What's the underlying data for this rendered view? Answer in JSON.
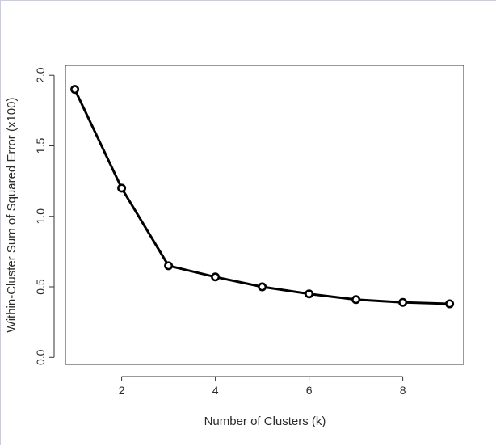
{
  "chart_data": {
    "type": "line",
    "title": "",
    "xlabel": "Number of Clusters (k)",
    "ylabel": "Within-Cluster Sum of Squared Error (x100)",
    "x": [
      1,
      2,
      3,
      4,
      5,
      6,
      7,
      8,
      9
    ],
    "series": [
      {
        "values": [
          1.9,
          1.2,
          0.65,
          0.57,
          0.5,
          0.45,
          0.41,
          0.39,
          0.38
        ],
        "color": "#000000",
        "marker": "open-circle"
      }
    ],
    "xlim": [
      0.8,
      9.3
    ],
    "ylim": [
      -0.05,
      2.07
    ],
    "xticks": [
      2,
      4,
      6,
      8
    ],
    "xtick_labels": [
      "2",
      "4",
      "6",
      "8"
    ],
    "yticks": [
      0.0,
      0.5,
      1.0,
      1.5,
      2.0
    ],
    "ytick_labels": [
      "0.0",
      "0.5",
      "1.0",
      "1.5",
      "2.0"
    ],
    "grid": false,
    "legend": "none"
  }
}
